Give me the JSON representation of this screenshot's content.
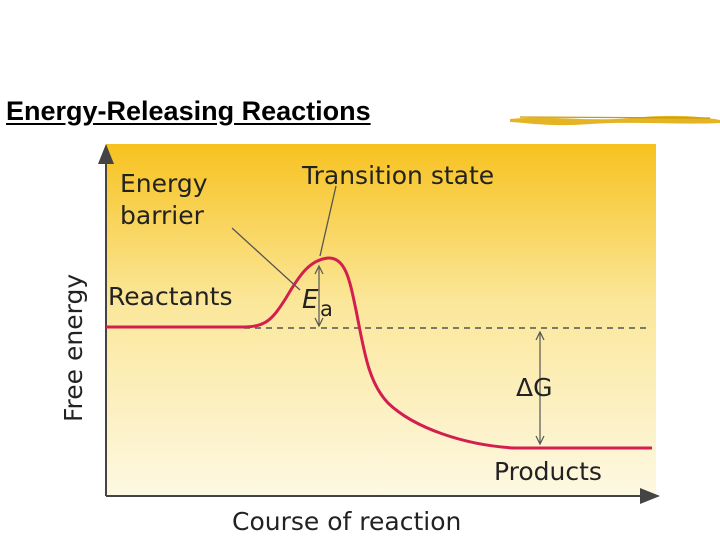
{
  "slide": {
    "title": "Energy-Releasing Reactions"
  },
  "diagram": {
    "axis_y_label": "Free energy",
    "axis_x_label": "Course of reaction",
    "label_energy_barrier_line1": "Energy",
    "label_energy_barrier_line2": "barrier",
    "label_transition_state": "Transition state",
    "label_reactants": "Reactants",
    "label_ea_main": "E",
    "label_ea_sub": "a",
    "label_delta_g": "ΔG",
    "label_products": "Products"
  },
  "colors": {
    "background_top": "#f7c21f",
    "background_bottom": "#fdf8e2",
    "curve": "#d21f4f",
    "title_rule": "#e4b422",
    "axis": "#444444"
  }
}
